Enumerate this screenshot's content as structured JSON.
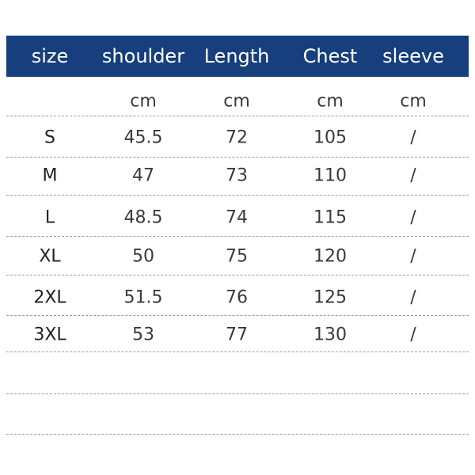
{
  "table": {
    "header": [
      "size",
      "shoulder",
      "Length",
      "Chest",
      "sleeve"
    ],
    "units": [
      "cm",
      "cm",
      "cm",
      "cm"
    ],
    "rows": [
      [
        "S",
        "45.5",
        "72",
        "105",
        "/"
      ],
      [
        "M",
        "47",
        "73",
        "110",
        "/"
      ],
      [
        "L",
        "48.5",
        "74",
        "115",
        "/"
      ],
      [
        "XL",
        "50",
        "75",
        "120",
        "/"
      ],
      [
        "2XL",
        "51.5",
        "76",
        "125",
        "/"
      ],
      [
        "3XL",
        "53",
        "77",
        "130",
        "/"
      ]
    ]
  }
}
